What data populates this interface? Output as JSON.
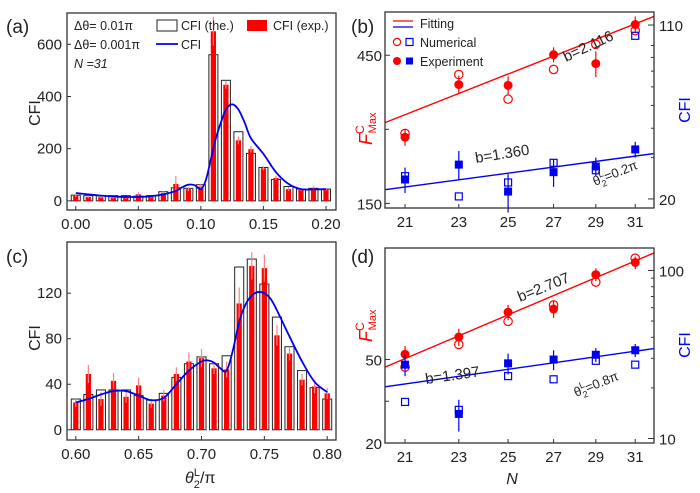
{
  "colors": {
    "red": "#ff0000",
    "blue": "#0000ee",
    "axis": "#333333",
    "bar_outline": "#222222",
    "error_bar": "#ff8080"
  },
  "chart_data": [
    {
      "id": "a",
      "panel_label": "(a)",
      "type": "bar",
      "xlabel": "",
      "ylabel": "CFI",
      "xlim": [
        -0.007,
        0.208
      ],
      "ylim": [
        -35,
        720
      ],
      "xticks": [
        0.0,
        0.05,
        0.1,
        0.15,
        0.2
      ],
      "xtick_labels": [
        "0.00",
        "0.05",
        "0.10",
        "0.15",
        "0.20"
      ],
      "yticks": [
        0,
        200,
        400,
        600
      ],
      "ytick_labels": [
        "0",
        "200",
        "400",
        "600"
      ],
      "legend": {
        "position": "top-left",
        "rows": [
          {
            "prefix": "Δθ= 0.01π",
            "entries": [
              {
                "label": "CFI (the.)",
                "marker": "open-bar"
              },
              {
                "label": "CFI (exp.)",
                "marker": "filled-bar"
              }
            ]
          },
          {
            "prefix": "Δθ= 0.001π",
            "entries": [
              {
                "label": "CFI",
                "marker": "blue-line"
              }
            ]
          },
          {
            "prefix": "N =31",
            "entries": []
          }
        ]
      },
      "x": [
        0.0,
        0.01,
        0.02,
        0.03,
        0.04,
        0.05,
        0.06,
        0.07,
        0.08,
        0.09,
        0.1,
        0.11,
        0.12,
        0.13,
        0.14,
        0.15,
        0.16,
        0.17,
        0.18,
        0.19,
        0.2
      ],
      "series": [
        {
          "name": "CFI (the.)",
          "style": "open-bar",
          "values": [
            22,
            20,
            20,
            20,
            20,
            18,
            20,
            35,
            50,
            48,
            62,
            560,
            462,
            265,
            182,
            128,
            82,
            55,
            45,
            48,
            45
          ]
        },
        {
          "name": "CFI (exp.)",
          "style": "filled-bar",
          "values": [
            20,
            15,
            14,
            12,
            12,
            25,
            15,
            30,
            65,
            45,
            55,
            650,
            445,
            232,
            198,
            125,
            88,
            45,
            42,
            48,
            44
          ],
          "errors": [
            5,
            5,
            5,
            5,
            5,
            8,
            5,
            8,
            30,
            8,
            8,
            55,
            15,
            15,
            12,
            8,
            8,
            8,
            5,
            8,
            5
          ]
        },
        {
          "name": "CFI",
          "style": "line",
          "x": [
            0.0,
            0.01,
            0.02,
            0.03,
            0.04,
            0.05,
            0.06,
            0.07,
            0.08,
            0.085,
            0.09,
            0.095,
            0.1,
            0.104,
            0.108,
            0.112,
            0.116,
            0.12,
            0.125,
            0.13,
            0.135,
            0.14,
            0.15,
            0.16,
            0.17,
            0.18,
            0.19,
            0.2
          ],
          "values": [
            30,
            25,
            20,
            17,
            15,
            15,
            18,
            25,
            38,
            52,
            62,
            60,
            45,
            80,
            160,
            240,
            300,
            350,
            370,
            350,
            300,
            240,
            180,
            110,
            65,
            45,
            44,
            45
          ]
        }
      ]
    },
    {
      "id": "b",
      "panel_label": "(b)",
      "type": "scatter",
      "xscale": "log",
      "yscale": "log",
      "xlabel": "",
      "ylabel_left": "F^C_Max",
      "ylabel_left_main": "F",
      "ylabel_left_sup": "C",
      "ylabel_left_sub": "Max",
      "ylabel_right": "CFI",
      "xlim": [
        20.3,
        32
      ],
      "xticks": [
        21,
        23,
        25,
        27,
        29,
        31
      ],
      "xtick_labels": [
        "21",
        "23",
        "25",
        "27",
        "29",
        "31"
      ],
      "ylim_left": [
        145,
        620
      ],
      "yticks_left": [
        150,
        450
      ],
      "ytick_labels_left": [
        "150",
        "450"
      ],
      "ylim_right": [
        18.3,
        125
      ],
      "yticks_right": [
        20,
        110
      ],
      "ytick_labels_right": [
        "20",
        "110"
      ],
      "legend": {
        "position": "top-left",
        "entries": [
          {
            "label": "Fitting",
            "marker": "lines"
          },
          {
            "label": "Numerical",
            "marker": "open"
          },
          {
            "label": "Experiment",
            "marker": "filled"
          }
        ]
      },
      "annotations": [
        {
          "text": "b=2.116",
          "series": "red-fit"
        },
        {
          "text": "b=1.360",
          "series": "blue-fit"
        },
        {
          "text": "θ",
          "sup": "L",
          "sub": "2",
          "rest": "=0.2π"
        }
      ],
      "series": [
        {
          "name": "F^C_Max numerical",
          "axis": "left",
          "color": "red",
          "marker": "open-circle",
          "x": [
            21,
            23,
            25,
            27,
            29,
            31
          ],
          "values": [
            252,
            390,
            325,
            405,
            488,
            540
          ]
        },
        {
          "name": "F^C_Max experiment",
          "axis": "left",
          "color": "red",
          "marker": "filled-circle",
          "x": [
            21,
            23,
            25,
            27,
            29,
            31
          ],
          "values": [
            245,
            362,
            360,
            452,
            423,
            565
          ],
          "errors": [
            15,
            25,
            25,
            25,
            40,
            35
          ]
        },
        {
          "name": "F^C_Max fit",
          "axis": "left",
          "color": "red",
          "marker": "line",
          "slope": 2.116,
          "x": [
            20.3,
            32
          ],
          "values": [
            273,
            600
          ]
        },
        {
          "name": "CFI numerical",
          "axis": "right",
          "color": "blue",
          "marker": "open-square",
          "x": [
            21,
            23,
            25,
            27,
            29,
            31
          ],
          "values": [
            25,
            20.5,
            23.5,
            28.5,
            26.5,
            99
          ]
        },
        {
          "name": "CFI experiment",
          "axis": "right",
          "color": "blue",
          "marker": "filled-square",
          "x": [
            21,
            23,
            25,
            27,
            29,
            31
          ],
          "values": [
            24.2,
            28,
            21.5,
            26,
            27.5,
            32.5
          ],
          "errors": [
            3,
            4,
            4,
            3.5,
            2.5,
            2.5
          ]
        },
        {
          "name": "CFI fit",
          "axis": "right",
          "color": "blue",
          "marker": "line",
          "slope": 1.36,
          "x": [
            20.3,
            32
          ],
          "values": [
            21.9,
            31.2
          ]
        }
      ]
    },
    {
      "id": "c",
      "panel_label": "(c)",
      "type": "bar",
      "xlabel": "θ2L/π",
      "xlabel_main": "θ",
      "xlabel_sup": "L",
      "xlabel_sub": "2",
      "xlabel_rest": "/π",
      "ylabel": "CFI",
      "xlim": [
        0.593,
        0.807
      ],
      "ylim": [
        -9,
        165
      ],
      "xticks": [
        0.6,
        0.65,
        0.7,
        0.75,
        0.8
      ],
      "xtick_labels": [
        "0.60",
        "0.65",
        "0.70",
        "0.75",
        "0.80"
      ],
      "yticks": [
        0,
        40,
        80,
        120
      ],
      "ytick_labels": [
        "0",
        "40",
        "80",
        "120"
      ],
      "x": [
        0.6,
        0.61,
        0.62,
        0.63,
        0.64,
        0.65,
        0.66,
        0.67,
        0.68,
        0.69,
        0.7,
        0.71,
        0.72,
        0.73,
        0.74,
        0.75,
        0.76,
        0.77,
        0.78,
        0.79,
        0.8
      ],
      "series": [
        {
          "name": "CFI (the.)",
          "style": "open-bar",
          "values": [
            27,
            31,
            35,
            35,
            35,
            30,
            26,
            32,
            46,
            58,
            64,
            58,
            65,
            143,
            150,
            128,
            99,
            73,
            52,
            37,
            27
          ]
        },
        {
          "name": "CFI (exp.)",
          "style": "filled-bar",
          "values": [
            24,
            49,
            27,
            43,
            29,
            39,
            23,
            30,
            49,
            60,
            63,
            54,
            53,
            111,
            144,
            142,
            83,
            67,
            44,
            38,
            32
          ],
          "errors": [
            4,
            8,
            6,
            7,
            5,
            7,
            4,
            5,
            6,
            8,
            8,
            5,
            7,
            14,
            12,
            12,
            9,
            6,
            5,
            6,
            5
          ]
        },
        {
          "name": "CFI",
          "style": "line",
          "x": [
            0.6,
            0.61,
            0.62,
            0.63,
            0.64,
            0.65,
            0.66,
            0.67,
            0.68,
            0.69,
            0.7,
            0.705,
            0.71,
            0.715,
            0.72,
            0.725,
            0.73,
            0.735,
            0.74,
            0.745,
            0.75,
            0.755,
            0.76,
            0.77,
            0.78,
            0.79,
            0.8
          ],
          "values": [
            24,
            27,
            31,
            34,
            34,
            30,
            26,
            28,
            40,
            52,
            60,
            61,
            59,
            54,
            52,
            70,
            95,
            110,
            118,
            121,
            120,
            115,
            105,
            82,
            60,
            42,
            33
          ]
        }
      ]
    },
    {
      "id": "d",
      "panel_label": "(d)",
      "type": "scatter",
      "xscale": "log",
      "yscale": "log",
      "xlabel": "N",
      "ylabel_left": "F^C_Max",
      "ylabel_left_main": "F",
      "ylabel_left_sup": "C",
      "ylabel_left_sub": "Max",
      "ylabel_right": "CFI",
      "xlim": [
        20.3,
        32
      ],
      "xticks": [
        21,
        23,
        25,
        27,
        29,
        31
      ],
      "xtick_labels": [
        "21",
        "23",
        "25",
        "27",
        "29",
        "31"
      ],
      "ylim_left": [
        20,
        170
      ],
      "yticks_left": [
        20,
        50
      ],
      "ytick_labels_left": [
        "20",
        "50"
      ],
      "ylim_right": [
        9.4,
        136
      ],
      "yticks_right": [
        10,
        100
      ],
      "ytick_labels_right": [
        "10",
        "100"
      ],
      "annotations": [
        {
          "text": "b=2.707",
          "series": "red-fit"
        },
        {
          "text": "b=1.397",
          "series": "blue-fit"
        },
        {
          "text": "θ",
          "sup": "L",
          "sub": "2",
          "rest": "=0.8π"
        }
      ],
      "series": [
        {
          "name": "F^C_Max numerical",
          "axis": "left",
          "color": "red",
          "marker": "open-circle",
          "x": [
            21,
            23,
            25,
            27,
            29,
            31
          ],
          "values": [
            46,
            59,
            76,
            91,
            117,
            152
          ]
        },
        {
          "name": "F^C_Max experiment",
          "axis": "left",
          "color": "red",
          "marker": "filled-circle",
          "x": [
            21,
            23,
            25,
            27,
            29,
            31
          ],
          "values": [
            53,
            64,
            84,
            87,
            127,
            145
          ],
          "errors": [
            5,
            6,
            7,
            8,
            9,
            10
          ]
        },
        {
          "name": "F^C_Max fit",
          "axis": "left",
          "color": "red",
          "marker": "line",
          "slope": 2.707,
          "x": [
            20.3,
            32
          ],
          "values": [
            46,
            161
          ]
        },
        {
          "name": "CFI numerical",
          "axis": "right",
          "color": "blue",
          "marker": "open-square",
          "x": [
            21,
            23,
            25,
            27,
            29,
            31
          ],
          "values": [
            16.5,
            14.8,
            23.5,
            22.5,
            29.0,
            27.5
          ]
        },
        {
          "name": "CFI experiment",
          "axis": "right",
          "color": "blue",
          "marker": "filled-square",
          "x": [
            21,
            23,
            25,
            27,
            29,
            31
          ],
          "values": [
            27.5,
            14.0,
            28.0,
            29.5,
            31.5,
            33.5
          ],
          "errors": [
            4,
            3,
            4,
            4,
            3,
            3
          ]
        },
        {
          "name": "CFI fit",
          "axis": "right",
          "color": "blue",
          "marker": "line",
          "slope": 1.397,
          "x": [
            20.3,
            32
          ],
          "values": [
            20.3,
            34.3
          ]
        }
      ]
    }
  ]
}
